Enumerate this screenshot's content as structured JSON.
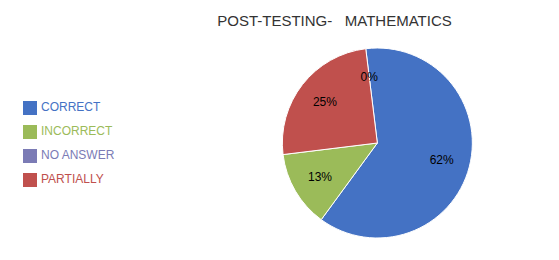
{
  "chart_data": {
    "type": "pie",
    "title": "POST-TESTING-   MATHEMATICS",
    "categories": [
      "CORRECT",
      "INCORRECT",
      "PARTIALLY",
      "NO ANSWER"
    ],
    "values": [
      62,
      13,
      25,
      0
    ],
    "value_labels": [
      "62%",
      "13%",
      "25%",
      "0%"
    ],
    "colors": [
      "#4472C4",
      "#9BBB59",
      "#C0504D",
      "#7B7BB5"
    ],
    "data_labels": true,
    "legend": "left"
  }
}
